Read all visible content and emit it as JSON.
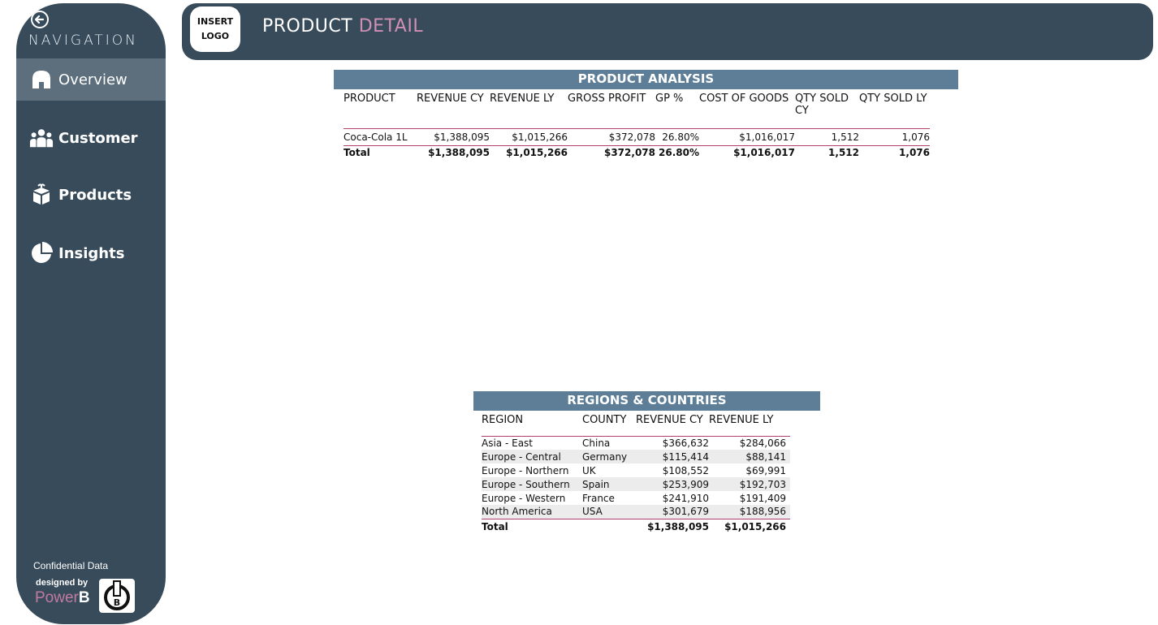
{
  "nav": {
    "title": "NAVIGATION",
    "items": [
      {
        "label": "Overview",
        "icon": "home-icon",
        "active": true
      },
      {
        "label": "Customer",
        "icon": "users-icon",
        "active": false
      },
      {
        "label": "Products",
        "icon": "box-icon",
        "active": false
      },
      {
        "label": "Insights",
        "icon": "pie-chart-icon",
        "active": false
      }
    ],
    "footer": {
      "confidential": "Confidential Data",
      "designed_by": "designed by",
      "brand_part1": "Power",
      "brand_part2": "B"
    }
  },
  "header": {
    "logo_line1": "INSERT",
    "logo_line2": "LOGO",
    "title_part1": "PRODUCT",
    "title_part2": "DETAIL"
  },
  "product_table": {
    "title": "PRODUCT ANALYSIS",
    "columns": [
      "PRODUCT",
      "REVENUE CY",
      "REVENUE LY",
      "GROSS PROFIT",
      "GP %",
      "COST OF GOODS",
      "QTY SOLD CY",
      "QTY SOLD LY"
    ],
    "rows": [
      [
        "Coca-Cola 1L",
        "$1,388,095",
        "$1,015,266",
        "$372,078",
        "26.80%",
        "$1,016,017",
        "1,512",
        "1,076"
      ]
    ],
    "total": [
      "Total",
      "$1,388,095",
      "$1,015,266",
      "$372,078",
      "26.80%",
      "$1,016,017",
      "1,512",
      "1,076"
    ]
  },
  "region_table": {
    "title": "REGIONS & COUNTRIES",
    "columns": [
      "REGION",
      "COUNTY",
      "REVENUE CY",
      "REVENUE LY"
    ],
    "rows": [
      [
        "Asia - East",
        "China",
        "$366,632",
        "$284,066"
      ],
      [
        "Europe - Central",
        "Germany",
        "$115,414",
        "$88,141"
      ],
      [
        "Europe - Northern",
        "UK",
        "$108,552",
        "$69,991"
      ],
      [
        "Europe - Southern",
        "Spain",
        "$253,909",
        "$192,703"
      ],
      [
        "Europe - Western",
        "France",
        "$241,910",
        "$191,409"
      ],
      [
        "North America",
        "USA",
        "$301,679",
        "$188,956"
      ]
    ],
    "total": [
      "Total",
      "",
      "$1,388,095",
      "$1,015,266"
    ]
  },
  "colors": {
    "sidebar": "#374b5a",
    "table_header": "#5d7e96",
    "accent_pink": "#d18fb4",
    "divider": "#b0406e"
  }
}
